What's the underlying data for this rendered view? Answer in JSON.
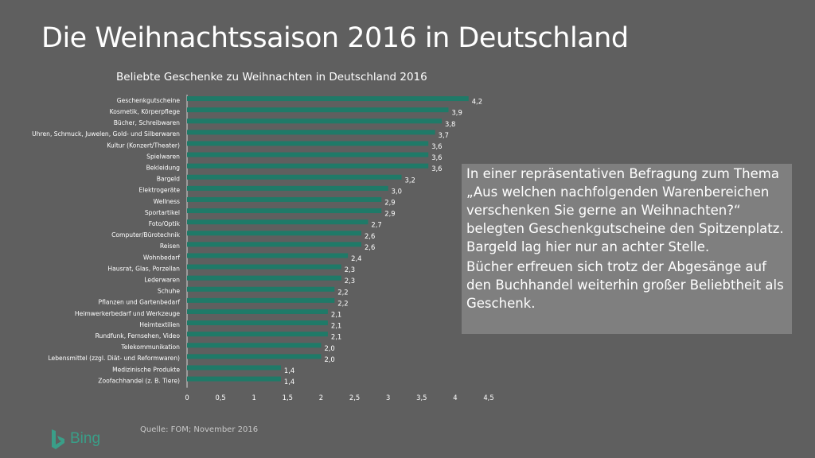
{
  "slide": {
    "title": "Die Weihnachtssaison 2016 in Deutschland",
    "source": "Quelle: FOM; November 2016",
    "logo_text": "Bing"
  },
  "textbox": {
    "paragraph1": "In einer repräsentativen Befragung zum Thema „Aus welchen nachfolgenden Warenbereichen verschenken Sie gerne an Weihnachten?“ belegten Geschenkgutscheine den Spitzenplatz. Bargeld lag hier nur an achter Stelle.",
    "paragraph2": "Bücher erfreuen sich trotz der Abgesänge auf den Buchhandel weiterhin großer Beliebtheit als Geschenk."
  },
  "colors": {
    "background": "#5f5f5f",
    "bar": "#1f7a68",
    "textbox_bg": "#7f7f7f",
    "logo": "#3a9e88"
  },
  "chart_data": {
    "type": "bar",
    "orientation": "horizontal",
    "title": "Beliebte Geschenke zu Weihnachten in Deutschland 2016",
    "categories": [
      "Geschenkgutscheine",
      "Kosmetik, Körperpflege",
      "Bücher, Schreibwaren",
      "Uhren, Schmuck, Juwelen, Gold- und Silberwaren",
      "Kultur (Konzert/Theater)",
      "Spielwaren",
      "Bekleidung",
      "Bargeld",
      "Elektrogeräte",
      "Wellness",
      "Sportartikel",
      "Foto/Optik",
      "Computer/Bürotechnik",
      "Reisen",
      "Wohnbedarf",
      "Hausrat, Glas, Porzellan",
      "Lederwaren",
      "Schuhe",
      "Pflanzen und Gartenbedarf",
      "Heimwerkerbedarf und Werkzeuge",
      "Heimtextilien",
      "Rundfunk, Fernsehen, Video",
      "Telekommunikation",
      "Lebensmittel (zzgl. Diät- und Reformwaren)",
      "Medizinische Produkte",
      "Zoofachhandel (z. B. Tiere)"
    ],
    "values": [
      4.2,
      3.9,
      3.8,
      3.7,
      3.6,
      3.6,
      3.6,
      3.2,
      3.0,
      2.9,
      2.9,
      2.7,
      2.6,
      2.6,
      2.4,
      2.3,
      2.3,
      2.2,
      2.2,
      2.1,
      2.1,
      2.1,
      2.0,
      2.0,
      1.4,
      1.4
    ],
    "value_labels": [
      "4,2",
      "3,9",
      "3,8",
      "3,7",
      "3,6",
      "3,6",
      "3,6",
      "3,2",
      "3,0",
      "2,9",
      "2,9",
      "2,7",
      "2,6",
      "2,6",
      "2,4",
      "2,3",
      "2,3",
      "2,2",
      "2,2",
      "2,1",
      "2,1",
      "2,1",
      "2,0",
      "2,0",
      "1,4",
      "1,4"
    ],
    "xlim": [
      0,
      4.5
    ],
    "x_ticks": [
      0,
      0.5,
      1,
      1.5,
      2,
      2.5,
      3,
      3.5,
      4,
      4.5
    ],
    "x_tick_labels": [
      "0",
      "0,5",
      "1",
      "1,5",
      "2",
      "2,5",
      "3",
      "3,5",
      "4",
      "4,5"
    ],
    "grid": false,
    "legend": "none"
  }
}
